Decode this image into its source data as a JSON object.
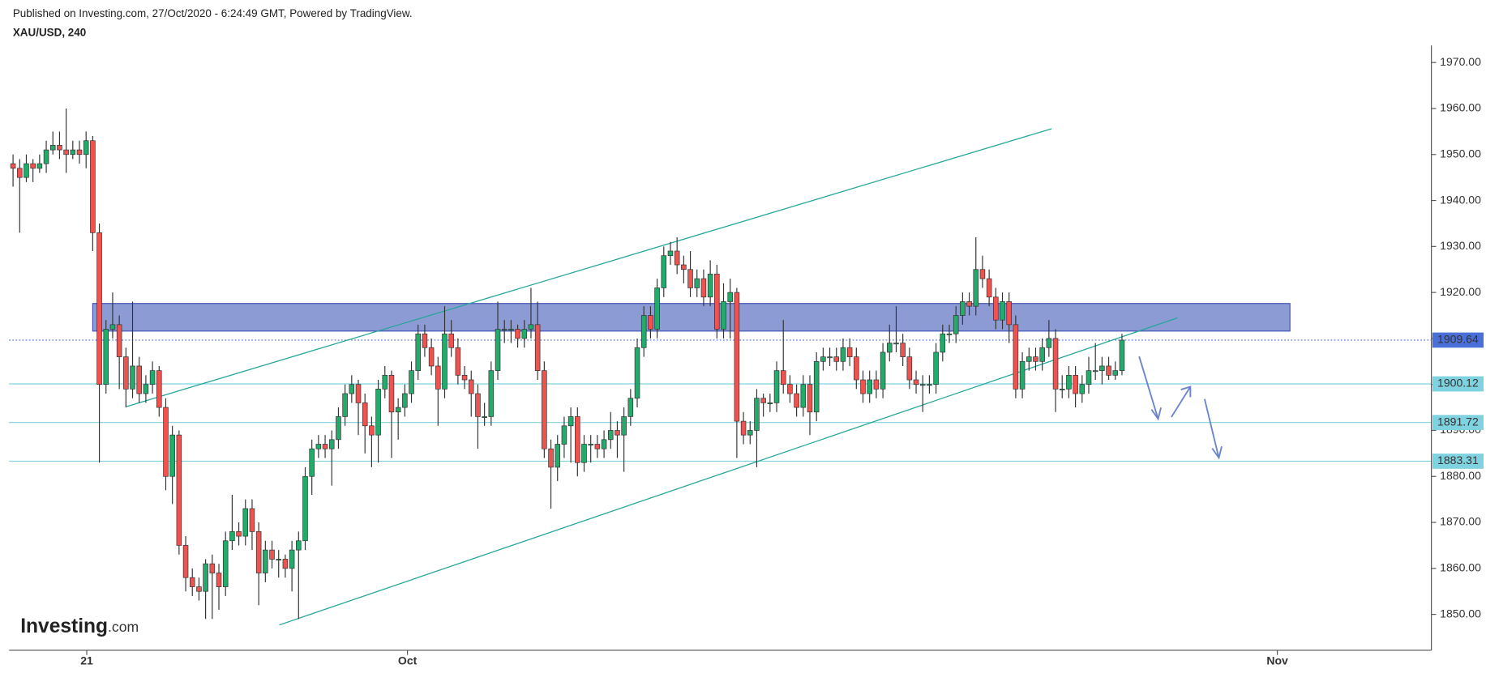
{
  "header": {
    "published": "Published on Investing.com, 27/Oct/2020 - 6:24:49 GMT, Powered by TradingView.",
    "symbol": "XAU/USD, 240"
  },
  "logo": {
    "brand": "Investing",
    "suffix": ".com"
  },
  "chart_data": {
    "type": "candlestick",
    "up_color": "#22ab6a",
    "down_color": "#ef5350",
    "xlim": [
      -0.6,
      213.6
    ],
    "xticks": [
      {
        "value": 11.1,
        "label": "21"
      },
      {
        "value": 59.4,
        "label": "Oct"
      },
      {
        "value": 190.4,
        "label": "Nov"
      }
    ],
    "ylim": [
      1842.2,
      1973.7
    ],
    "yticks": [
      {
        "value": 1850,
        "label": "1850.00"
      },
      {
        "value": 1860,
        "label": "1860.00"
      },
      {
        "value": 1870,
        "label": "1870.00"
      },
      {
        "value": 1880,
        "label": "1880.00"
      },
      {
        "value": 1890,
        "label": "1890.00"
      },
      {
        "value": 1900,
        "label": "1900.00"
      },
      {
        "value": 1910,
        "label": "1910.00"
      },
      {
        "value": 1920,
        "label": "1920.00"
      },
      {
        "value": 1930,
        "label": "1930.00"
      },
      {
        "value": 1940,
        "label": "1940.00"
      },
      {
        "value": 1950,
        "label": "1950.00"
      },
      {
        "value": 1960,
        "label": "1960.00"
      },
      {
        "value": 1970,
        "label": "1970.00"
      }
    ],
    "open": [
      1948,
      1947,
      1945,
      1948,
      1947,
      1948,
      1951,
      1952,
      1951,
      1950,
      1951,
      1950,
      1953,
      1933,
      1900,
      1912,
      1913,
      1906,
      1899,
      1904,
      1898,
      1900,
      1903,
      1895,
      1880,
      1889,
      1865,
      1858,
      1856,
      1855,
      1861,
      1859,
      1856,
      1866,
      1868,
      1867,
      1873,
      1868,
      1859,
      1864,
      1862,
      1862,
      1860,
      1864,
      1866,
      1880,
      1886,
      1887,
      1886,
      1888,
      1893,
      1898,
      1900,
      1896,
      1891,
      1889,
      1899,
      1902,
      1894,
      1895,
      1898,
      1903,
      1911,
      1908,
      1904,
      1899,
      1911,
      1908,
      1902,
      1901,
      1898,
      1893,
      1893,
      1903,
      1912,
      1912,
      1912,
      1910,
      1912,
      1913,
      1903,
      1886,
      1882,
      1887,
      1891,
      1893,
      1883,
      1887,
      1887,
      1886,
      1888,
      1890,
      1889,
      1893,
      1897,
      1908,
      1915,
      1912,
      1921,
      1928,
      1929,
      1926,
      1925,
      1921,
      1923,
      1919,
      1924,
      1912,
      1918,
      1920,
      1892,
      1889,
      1890,
      1897,
      1896,
      1896,
      1903,
      1900,
      1898,
      1895,
      1900,
      1894,
      1905,
      1906,
      1906,
      1905,
      1908,
      1906,
      1901,
      1898,
      1901,
      1899,
      1907,
      1909,
      1909,
      1906,
      1901,
      1900,
      1900,
      1900,
      1907,
      1911,
      1911,
      1915,
      1918,
      1917,
      1925,
      1923,
      1919,
      1914,
      1918,
      1913,
      1899,
      1905,
      1906,
      1905,
      1908,
      1910,
      1899,
      1899,
      1902,
      1898,
      1900,
      1903,
      1903,
      1904,
      1902,
      1903
    ],
    "high": [
      1950,
      1949,
      1950,
      1949,
      1950,
      1953,
      1955,
      1955,
      1960,
      1953,
      1953,
      1955,
      1954,
      1935,
      1914,
      1920,
      1915,
      1908,
      1918,
      1906,
      1902,
      1905,
      1904,
      1897,
      1891,
      1890,
      1867,
      1860,
      1858,
      1862,
      1863,
      1861,
      1868,
      1876,
      1870,
      1875,
      1875,
      1870,
      1866,
      1866,
      1864,
      1863,
      1866,
      1868,
      1882,
      1888,
      1889,
      1889,
      1890,
      1895,
      1900,
      1902,
      1901,
      1898,
      1893,
      1901,
      1904,
      1903,
      1897,
      1900,
      1905,
      1913,
      1913,
      1910,
      1906,
      1917,
      1914,
      1910,
      1904,
      1903,
      1900,
      1896,
      1905,
      1918,
      1914,
      1914,
      1913,
      1914,
      1921,
      1918,
      1905,
      1888,
      1889,
      1893,
      1895,
      1895,
      1889,
      1889,
      1889,
      1890,
      1894,
      1892,
      1895,
      1899,
      1910,
      1917,
      1917,
      1923,
      1930,
      1931,
      1932,
      1928,
      1929,
      1925,
      1925,
      1927,
      1926,
      1922,
      1923,
      1921,
      1894,
      1892,
      1899,
      1898,
      1898,
      1905,
      1914,
      1902,
      1900,
      1902,
      1902,
      1907,
      1908,
      1908,
      1908,
      1910,
      1910,
      1908,
      1903,
      1903,
      1903,
      1909,
      1913,
      1917,
      1911,
      1908,
      1903,
      1902,
      1902,
      1909,
      1913,
      1913,
      1917,
      1920,
      1920,
      1932,
      1928,
      1925,
      1921,
      1920,
      1920,
      1915,
      1907,
      1908,
      1908,
      1910,
      1914,
      1912,
      1902,
      1904,
      1904,
      1902,
      1906,
      1909,
      1906,
      1906,
      1905,
      1911
    ],
    "low": [
      1943,
      1933,
      1944,
      1944,
      1946,
      1946,
      1950,
      1949,
      1946,
      1949,
      1948,
      1947,
      1929,
      1883,
      1898,
      1910,
      1899,
      1895,
      1897,
      1896,
      1896,
      1898,
      1893,
      1877,
      1874,
      1863,
      1855,
      1854,
      1853,
      1849,
      1849,
      1851,
      1854,
      1864,
      1865,
      1865,
      1864,
      1852,
      1857,
      1860,
      1858,
      1858,
      1855,
      1849,
      1864,
      1876,
      1884,
      1884,
      1878,
      1886,
      1891,
      1896,
      1889,
      1885,
      1882,
      1883,
      1897,
      1884,
      1888,
      1893,
      1896,
      1901,
      1906,
      1902,
      1891,
      1897,
      1906,
      1900,
      1899,
      1893,
      1886,
      1891,
      1891,
      1901,
      1909,
      1909,
      1908,
      1908,
      1910,
      1901,
      1884,
      1873,
      1879,
      1884,
      1883,
      1880,
      1881,
      1883,
      1884,
      1884,
      1886,
      1884,
      1881,
      1891,
      1895,
      1906,
      1910,
      1910,
      1919,
      1926,
      1924,
      1922,
      1919,
      1919,
      1917,
      1917,
      1910,
      1910,
      1910,
      1884,
      1887,
      1887,
      1882,
      1893,
      1894,
      1894,
      1898,
      1896,
      1893,
      1893,
      1889,
      1892,
      1903,
      1904,
      1903,
      1903,
      1904,
      1899,
      1896,
      1896,
      1897,
      1897,
      1905,
      1907,
      1904,
      1899,
      1898,
      1894,
      1898,
      1898,
      1905,
      1909,
      1909,
      1913,
      1915,
      1915,
      1921,
      1917,
      1912,
      1912,
      1909,
      1897,
      1897,
      1903,
      1903,
      1903,
      1906,
      1894,
      1897,
      1897,
      1895,
      1896,
      1898,
      1901,
      1900,
      1901,
      1901,
      1902
    ],
    "close": [
      1947,
      1945,
      1948,
      1947,
      1948,
      1951,
      1952,
      1951,
      1950,
      1951,
      1950,
      1953,
      1933,
      1900,
      1912,
      1913,
      1906,
      1899,
      1904,
      1898,
      1900,
      1903,
      1895,
      1880,
      1889,
      1865,
      1858,
      1856,
      1855,
      1861,
      1859,
      1856,
      1866,
      1868,
      1867,
      1873,
      1868,
      1859,
      1864,
      1862,
      1862,
      1860,
      1864,
      1866,
      1880,
      1886,
      1887,
      1886,
      1888,
      1893,
      1898,
      1900,
      1896,
      1891,
      1889,
      1899,
      1902,
      1894,
      1895,
      1898,
      1903,
      1911,
      1908,
      1904,
      1899,
      1911,
      1908,
      1902,
      1901,
      1898,
      1893,
      1893,
      1903,
      1912,
      1912,
      1912,
      1910,
      1912,
      1913,
      1903,
      1886,
      1882,
      1887,
      1891,
      1893,
      1883,
      1887,
      1887,
      1886,
      1888,
      1890,
      1889,
      1893,
      1897,
      1908,
      1915,
      1912,
      1921,
      1928,
      1929,
      1926,
      1925,
      1921,
      1923,
      1919,
      1924,
      1912,
      1918,
      1920,
      1892,
      1889,
      1890,
      1897,
      1896,
      1896,
      1903,
      1900,
      1898,
      1895,
      1900,
      1894,
      1905,
      1906,
      1906,
      1905,
      1908,
      1906,
      1901,
      1898,
      1901,
      1899,
      1907,
      1909,
      1909,
      1906,
      1901,
      1900,
      1900,
      1900,
      1907,
      1911,
      1911,
      1915,
      1918,
      1917,
      1925,
      1923,
      1919,
      1914,
      1918,
      1913,
      1899,
      1905,
      1906,
      1905,
      1908,
      1910,
      1899,
      1899,
      1902,
      1898,
      1900,
      1903,
      1903,
      1904,
      1902,
      1903,
      1909.64
    ],
    "last_price": 1909.64,
    "price_lines": [
      1900.12,
      1891.72,
      1883.31
    ],
    "zone": {
      "x": [
        12.0,
        192.3
      ],
      "y": [
        1911.6,
        1917.6
      ]
    },
    "trendlines": [
      {
        "x": [
          17.1,
          156.4
        ],
        "y": [
          1895.2,
          1955.6
        ]
      },
      {
        "x": [
          40.1,
          175.4
        ],
        "y": [
          1847.7,
          1914.5
        ]
      }
    ]
  }
}
